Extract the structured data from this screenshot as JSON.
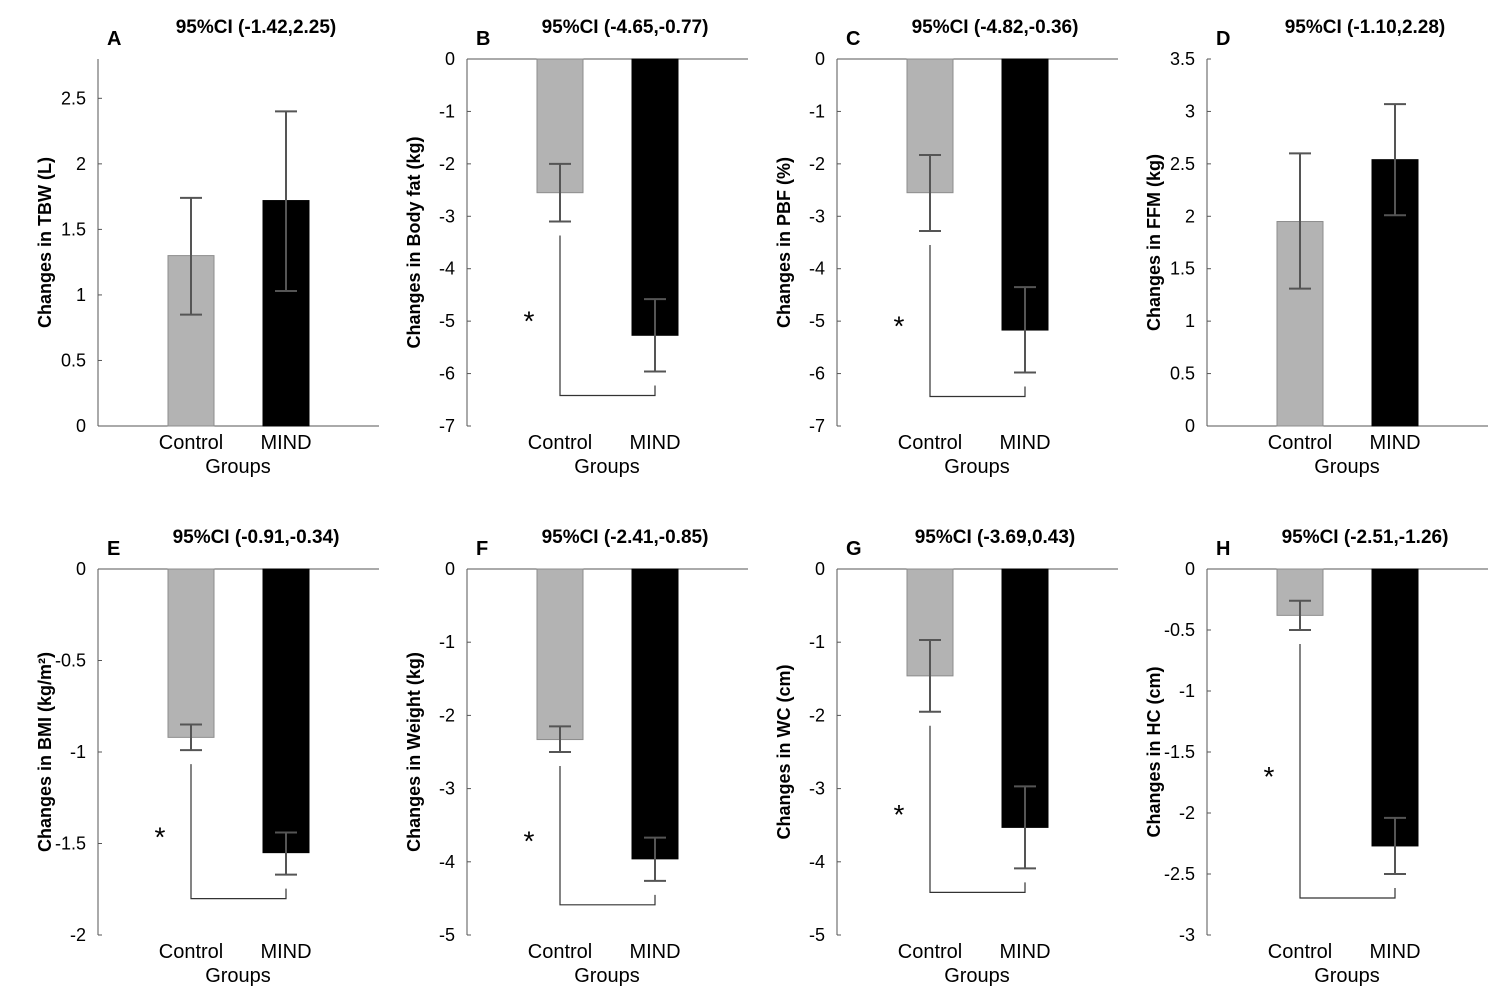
{
  "chart_data": [
    {
      "type": "bar",
      "letter": "A",
      "title": "95%CI (-1.42,2.25)",
      "ylabel": "Changes in TBW (L)",
      "xlabel": "Groups",
      "categories": [
        "Control",
        "MIND"
      ],
      "values": [
        1.3,
        1.72
      ],
      "err_low": [
        0.85,
        1.03
      ],
      "err_high": [
        1.74,
        2.4
      ],
      "ylim": [
        0,
        2.8
      ],
      "yticks": [
        0,
        0.5,
        1,
        1.5,
        2,
        2.5
      ],
      "colors": [
        "#b3b3b3",
        "#000000"
      ],
      "significant": false
    },
    {
      "type": "bar",
      "letter": "B",
      "title": "95%CI (-4.65,-0.77)",
      "ylabel": "Changes in Body fat (kg)",
      "xlabel": "Groups",
      "categories": [
        "Control",
        "MIND"
      ],
      "values": [
        -2.55,
        -5.27
      ],
      "err_low": [
        -3.1,
        -5.96
      ],
      "err_high": [
        -2.0,
        -4.58
      ],
      "ylim": [
        -7,
        0
      ],
      "yticks": [
        0,
        -1,
        -2,
        -3,
        -4,
        -5,
        -6,
        -7
      ],
      "colors": [
        "#b3b3b3",
        "#000000"
      ],
      "significant": true,
      "significance_mark": "*"
    },
    {
      "type": "bar",
      "letter": "C",
      "title": "95%CI (-4.82,-0.36)",
      "ylabel": "Changes in PBF (%)",
      "xlabel": "Groups",
      "categories": [
        "Control",
        "MIND"
      ],
      "values": [
        -2.55,
        -5.17
      ],
      "err_low": [
        -3.28,
        -5.98
      ],
      "err_high": [
        -1.83,
        -4.35
      ],
      "ylim": [
        -7,
        0
      ],
      "yticks": [
        0,
        -1,
        -2,
        -3,
        -4,
        -5,
        -6,
        -7
      ],
      "colors": [
        "#b3b3b3",
        "#000000"
      ],
      "significant": true,
      "significance_mark": "*"
    },
    {
      "type": "bar",
      "letter": "D",
      "title": "95%CI (-1.10,2.28)",
      "ylabel": "Changes in FFM (kg)",
      "xlabel": "Groups",
      "categories": [
        "Control",
        "MIND"
      ],
      "values": [
        1.95,
        2.54
      ],
      "err_low": [
        1.31,
        2.01
      ],
      "err_high": [
        2.6,
        3.07
      ],
      "ylim": [
        0,
        3.5
      ],
      "yticks": [
        0,
        0.5,
        1,
        1.5,
        2,
        2.5,
        3,
        3.5
      ],
      "colors": [
        "#b3b3b3",
        "#000000"
      ],
      "significant": false
    },
    {
      "type": "bar",
      "letter": "E",
      "title": "95%CI (-0.91,-0.34)",
      "ylabel": "Changes in BMI (kg/m²)",
      "xlabel": "Groups",
      "categories": [
        "Control",
        "MIND"
      ],
      "values": [
        -0.92,
        -1.55
      ],
      "err_low": [
        -0.99,
        -1.67
      ],
      "err_high": [
        -0.85,
        -1.44
      ],
      "ylim": [
        -2,
        0
      ],
      "yticks": [
        0,
        -0.5,
        -1,
        -1.5,
        -2
      ],
      "colors": [
        "#b3b3b3",
        "#000000"
      ],
      "significant": true,
      "significance_mark": "*"
    },
    {
      "type": "bar",
      "letter": "F",
      "title": "95%CI (-2.41,-0.85)",
      "ylabel": "Changes in Weight (kg)",
      "xlabel": "Groups",
      "categories": [
        "Control",
        "MIND"
      ],
      "values": [
        -2.33,
        -3.96
      ],
      "err_low": [
        -2.5,
        -4.26
      ],
      "err_high": [
        -2.15,
        -3.67
      ],
      "ylim": [
        -5,
        0
      ],
      "yticks": [
        0,
        -1,
        -2,
        -3,
        -4,
        -5
      ],
      "colors": [
        "#b3b3b3",
        "#000000"
      ],
      "significant": true,
      "significance_mark": "*"
    },
    {
      "type": "bar",
      "letter": "G",
      "title": "95%CI (-3.69,0.43)",
      "ylabel": "Changes in WC (cm)",
      "xlabel": "Groups",
      "categories": [
        "Control",
        "MIND"
      ],
      "values": [
        -1.46,
        -3.53
      ],
      "err_low": [
        -1.95,
        -4.09
      ],
      "err_high": [
        -0.97,
        -2.97
      ],
      "ylim": [
        -5,
        0
      ],
      "yticks": [
        0,
        -1,
        -2,
        -3,
        -4,
        -5
      ],
      "colors": [
        "#b3b3b3",
        "#000000"
      ],
      "significant": true,
      "significance_mark": "*"
    },
    {
      "type": "bar",
      "letter": "H",
      "title": "95%CI (-2.51,-1.26)",
      "ylabel": "Changes in HC (cm)",
      "xlabel": "Groups",
      "categories": [
        "Control",
        "MIND"
      ],
      "values": [
        -0.38,
        -2.27
      ],
      "err_low": [
        -0.5,
        -2.5
      ],
      "err_high": [
        -0.26,
        -2.04
      ],
      "ylim": [
        -3,
        0
      ],
      "yticks": [
        0,
        -0.5,
        -1,
        -1.5,
        -2,
        -2.5,
        -3
      ],
      "colors": [
        "#b3b3b3",
        "#000000"
      ],
      "significant": true,
      "significance_mark": "*"
    }
  ]
}
